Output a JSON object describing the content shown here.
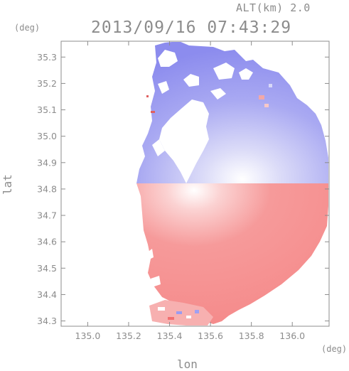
{
  "header": {
    "altitude_label": "ALT(km) 2.0",
    "timestamp": "2013/09/16 07:43:29"
  },
  "chart_data": {
    "type": "heatmap",
    "title": "",
    "xlabel": "lon",
    "ylabel": "lat",
    "x_unit": "(deg)",
    "y_unit": "(deg)",
    "xlim": [
      134.87,
      136.18
    ],
    "ylim": [
      34.28,
      35.36
    ],
    "x_ticks": [
      135.0,
      135.2,
      135.4,
      135.6,
      135.8,
      136.0
    ],
    "x_tick_labels": [
      "135.0",
      "135.2",
      "135.4",
      "135.6",
      "135.8",
      "136.0"
    ],
    "y_ticks": [
      34.3,
      34.4,
      34.5,
      34.6,
      34.7,
      34.8,
      34.9,
      35.0,
      35.1,
      35.2,
      35.3
    ],
    "y_tick_labels": [
      "34.3",
      "34.4",
      "34.5",
      "34.6",
      "34.7",
      "34.8",
      "34.9",
      "35.0",
      "35.1",
      "35.2",
      "35.3"
    ],
    "radar_center": {
      "lon": 135.52,
      "lat": 34.82
    },
    "colors": {
      "toward": "#8080f0",
      "away": "#f47878",
      "neutral": "#ffffff",
      "axis": "#8c8c8c"
    },
    "grid": false,
    "legend": "none"
  }
}
